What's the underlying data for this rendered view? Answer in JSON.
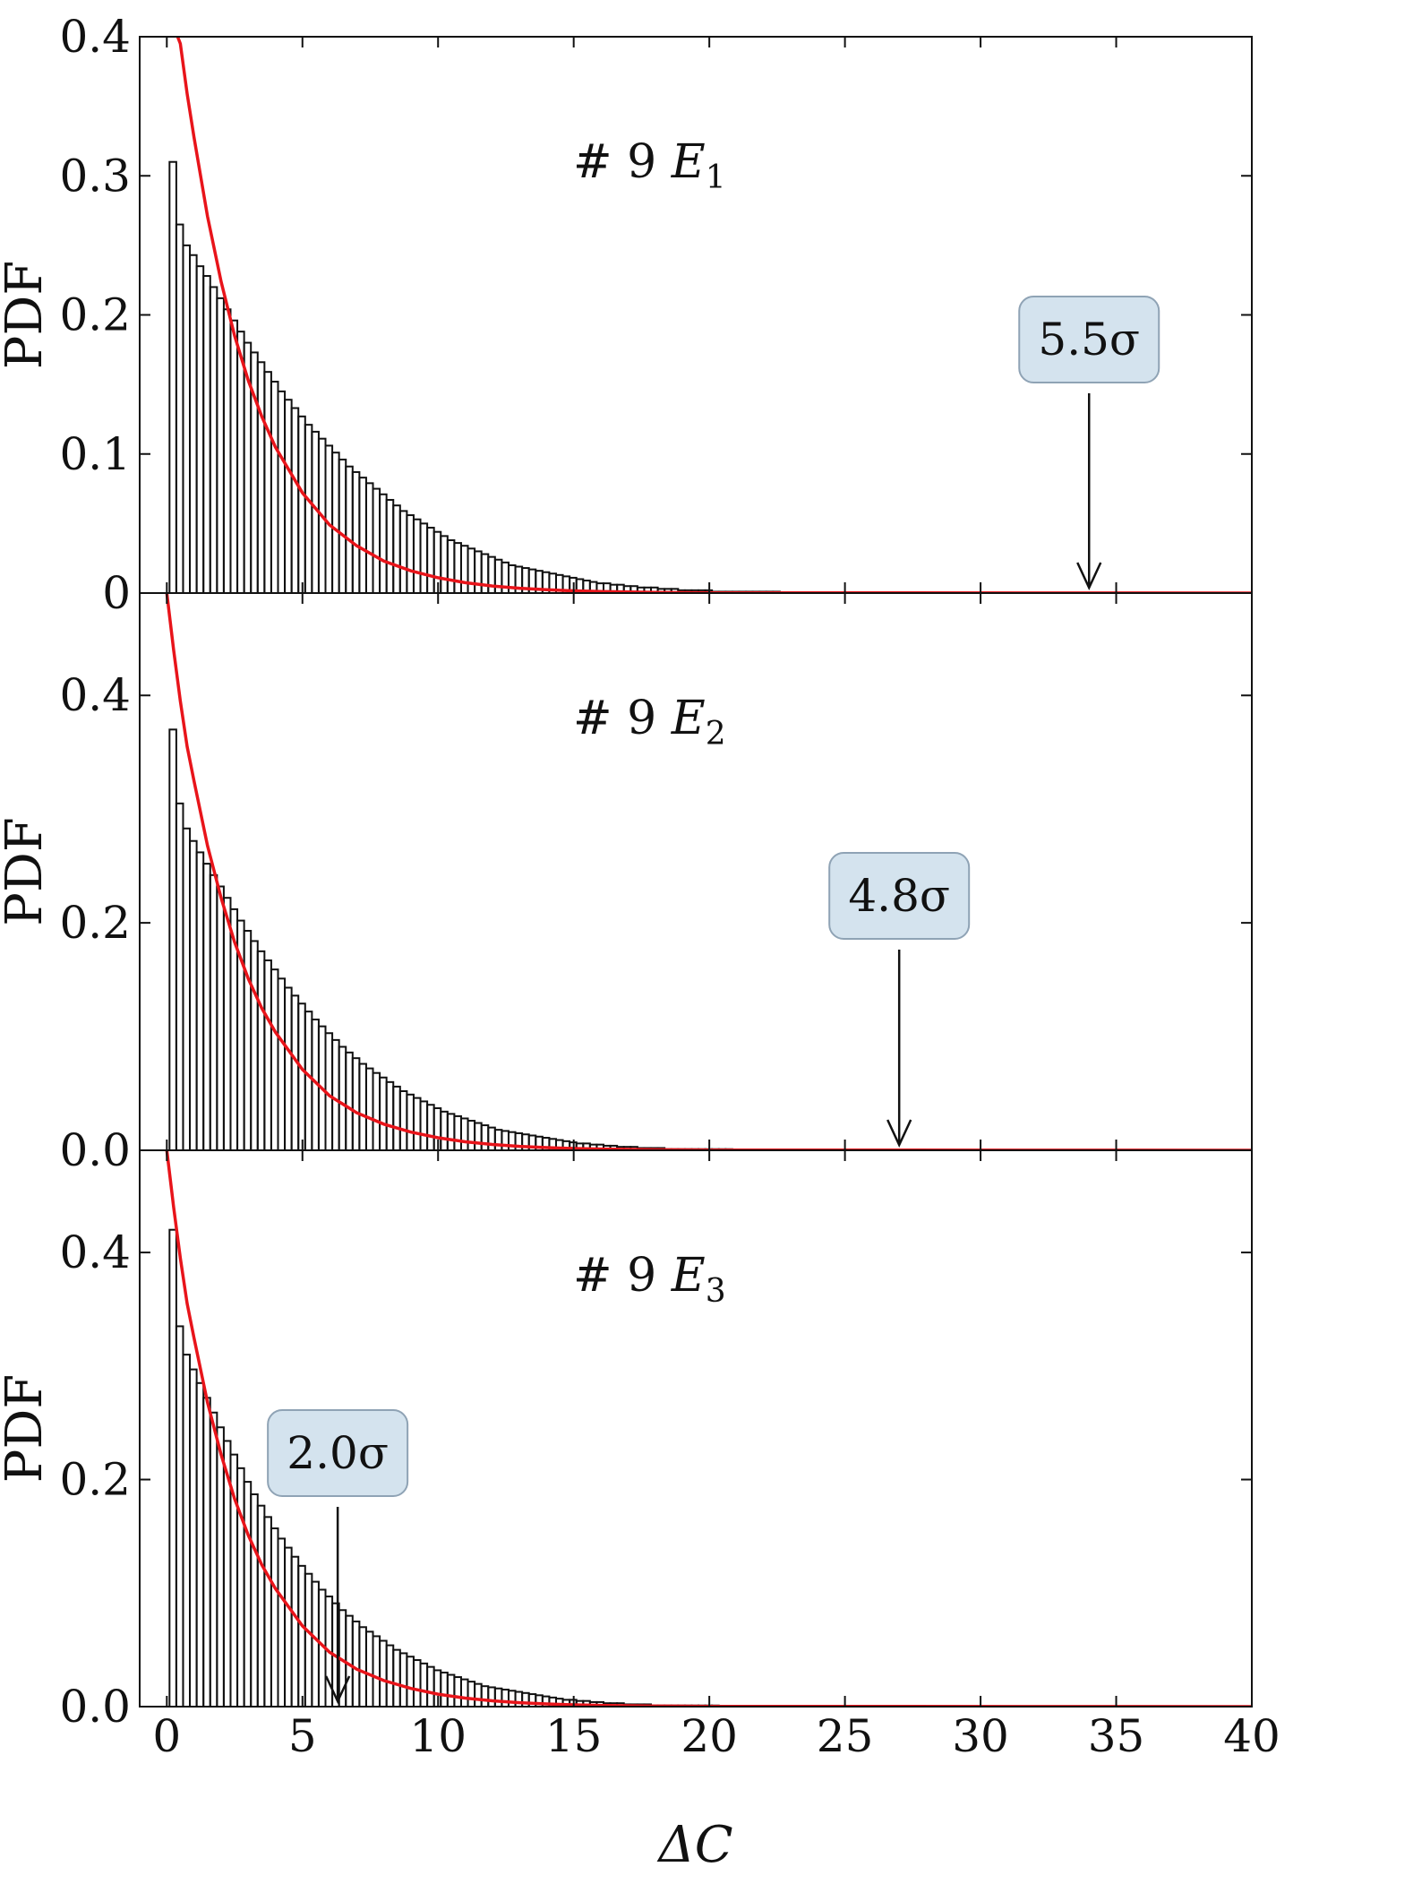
{
  "chart_data": [
    {
      "type": "bar",
      "title": "# 9 E1",
      "title_parts": {
        "prefix": "# 9 ",
        "var": "E",
        "sub": "1"
      },
      "xlabel": "ΔC",
      "ylabel": "PDF",
      "xlim": [
        -1,
        40
      ],
      "ylim": [
        0,
        0.4
      ],
      "yticks": [
        0,
        0.1,
        0.2,
        0.3,
        0.4
      ],
      "ytick_labels": [
        "0",
        "0.1",
        "0.2",
        "0.3",
        "0.4"
      ],
      "xticks": [
        0,
        5,
        10,
        15,
        20,
        25,
        30,
        35,
        40
      ],
      "xtick_labels": [
        "0",
        "5",
        "10",
        "15",
        "20",
        "25",
        "30",
        "35",
        "40"
      ],
      "grid": false,
      "histogram": {
        "bin_start": 0.1,
        "bin_width": 0.25,
        "values": [
          0.31,
          0.265,
          0.25,
          0.243,
          0.235,
          0.228,
          0.22,
          0.212,
          0.204,
          0.196,
          0.188,
          0.18,
          0.173,
          0.166,
          0.159,
          0.152,
          0.145,
          0.139,
          0.133,
          0.127,
          0.121,
          0.116,
          0.111,
          0.106,
          0.101,
          0.096,
          0.091,
          0.087,
          0.083,
          0.079,
          0.075,
          0.071,
          0.067,
          0.063,
          0.059,
          0.056,
          0.053,
          0.05,
          0.047,
          0.044,
          0.041,
          0.038,
          0.036,
          0.034,
          0.032,
          0.03,
          0.028,
          0.026,
          0.024,
          0.022,
          0.02,
          0.019,
          0.018,
          0.017,
          0.016,
          0.015,
          0.014,
          0.013,
          0.012,
          0.011,
          0.01,
          0.009,
          0.008,
          0.007,
          0.007,
          0.006,
          0.006,
          0.005,
          0.005,
          0.004,
          0.004,
          0.004,
          0.003,
          0.003,
          0.003,
          0.002,
          0.002,
          0.002,
          0.002,
          0.002,
          0.001,
          0.001,
          0.001,
          0.001,
          0.001,
          0.001,
          0.001,
          0.001,
          0.001,
          0.001
        ]
      },
      "curve": {
        "color": "#e8141a",
        "x": [
          0.4,
          0.5,
          0.75,
          1,
          1.5,
          2,
          2.5,
          3,
          3.5,
          4,
          5,
          6,
          7,
          8,
          9,
          10,
          11,
          12,
          13,
          14,
          15,
          16,
          17,
          18,
          20,
          40
        ],
        "y": [
          0.4,
          0.395,
          0.359,
          0.328,
          0.271,
          0.224,
          0.185,
          0.153,
          0.127,
          0.105,
          0.072,
          0.049,
          0.034,
          0.023,
          0.016,
          0.011,
          0.0075,
          0.0051,
          0.0035,
          0.0024,
          0.0016,
          0.0011,
          0.0008,
          0.0005,
          0.0002,
          0
        ]
      },
      "annotation": {
        "text": "5.5σ",
        "x": 34
      }
    },
    {
      "type": "bar",
      "title": "# 9 E2",
      "title_parts": {
        "prefix": "# 9 ",
        "var": "E",
        "sub": "2"
      },
      "xlabel": "ΔC",
      "ylabel": "PDF",
      "xlim": [
        -1,
        40
      ],
      "ylim": [
        0,
        0.49
      ],
      "yticks": [
        0,
        0.2,
        0.4
      ],
      "ytick_labels": [
        "0.0",
        "0.2",
        "0.4"
      ],
      "xticks": [
        0,
        5,
        10,
        15,
        20,
        25,
        30,
        35,
        40
      ],
      "xtick_labels": [
        "0",
        "5",
        "10",
        "15",
        "20",
        "25",
        "30",
        "35",
        "40"
      ],
      "grid": false,
      "histogram": {
        "bin_start": 0.1,
        "bin_width": 0.25,
        "values": [
          0.37,
          0.305,
          0.283,
          0.272,
          0.262,
          0.252,
          0.242,
          0.232,
          0.222,
          0.212,
          0.202,
          0.193,
          0.184,
          0.175,
          0.167,
          0.159,
          0.151,
          0.143,
          0.136,
          0.129,
          0.122,
          0.115,
          0.109,
          0.103,
          0.097,
          0.091,
          0.086,
          0.081,
          0.076,
          0.072,
          0.068,
          0.064,
          0.06,
          0.056,
          0.052,
          0.049,
          0.046,
          0.043,
          0.04,
          0.037,
          0.034,
          0.032,
          0.03,
          0.028,
          0.026,
          0.024,
          0.022,
          0.02,
          0.018,
          0.017,
          0.016,
          0.015,
          0.014,
          0.013,
          0.012,
          0.011,
          0.01,
          0.009,
          0.008,
          0.007,
          0.006,
          0.006,
          0.005,
          0.005,
          0.004,
          0.004,
          0.003,
          0.003,
          0.003,
          0.002,
          0.002,
          0.002,
          0.002,
          0.001,
          0.001,
          0.001,
          0.001,
          0.001,
          0.001,
          0.001,
          0.001,
          0.001,
          0.001
        ]
      },
      "curve": {
        "color": "#e8141a",
        "x": [
          0,
          0.25,
          0.5,
          0.75,
          1,
          1.5,
          2,
          2.5,
          3,
          3.5,
          4,
          5,
          6,
          7,
          8,
          9,
          10,
          11,
          12,
          13,
          14,
          15,
          16,
          18,
          20,
          40
        ],
        "y": [
          0.49,
          0.44,
          0.395,
          0.355,
          0.325,
          0.268,
          0.222,
          0.183,
          0.151,
          0.125,
          0.104,
          0.071,
          0.048,
          0.033,
          0.023,
          0.016,
          0.011,
          0.0075,
          0.0051,
          0.0035,
          0.0024,
          0.0016,
          0.0011,
          0.0005,
          0.0002,
          0
        ]
      },
      "annotation": {
        "text": "4.8σ",
        "x": 27
      }
    },
    {
      "type": "bar",
      "title": "# 9 E3",
      "title_parts": {
        "prefix": "# 9 ",
        "var": "E",
        "sub": "3"
      },
      "xlabel": "ΔC",
      "ylabel": "PDF",
      "xlim": [
        -1,
        40
      ],
      "ylim": [
        0,
        0.49
      ],
      "yticks": [
        0,
        0.2,
        0.4
      ],
      "ytick_labels": [
        "0.0",
        "0.2",
        "0.4"
      ],
      "xticks": [
        0,
        5,
        10,
        15,
        20,
        25,
        30,
        35,
        40
      ],
      "xtick_labels": [
        "0",
        "5",
        "10",
        "15",
        "20",
        "25",
        "30",
        "35",
        "40"
      ],
      "grid": false,
      "histogram": {
        "bin_start": 0.1,
        "bin_width": 0.25,
        "values": [
          0.42,
          0.335,
          0.31,
          0.297,
          0.285,
          0.272,
          0.259,
          0.246,
          0.234,
          0.222,
          0.21,
          0.198,
          0.187,
          0.177,
          0.167,
          0.157,
          0.148,
          0.14,
          0.132,
          0.124,
          0.117,
          0.11,
          0.103,
          0.097,
          0.091,
          0.085,
          0.08,
          0.075,
          0.07,
          0.066,
          0.062,
          0.058,
          0.054,
          0.05,
          0.047,
          0.044,
          0.041,
          0.038,
          0.035,
          0.032,
          0.03,
          0.028,
          0.026,
          0.024,
          0.022,
          0.02,
          0.018,
          0.017,
          0.016,
          0.015,
          0.014,
          0.013,
          0.012,
          0.011,
          0.01,
          0.009,
          0.008,
          0.007,
          0.006,
          0.006,
          0.005,
          0.005,
          0.004,
          0.004,
          0.003,
          0.003,
          0.003,
          0.002,
          0.002,
          0.002,
          0.002,
          0.001,
          0.001,
          0.001,
          0.001,
          0.001,
          0.001,
          0.001,
          0.001,
          0.001,
          0.001
        ]
      },
      "curve": {
        "color": "#e8141a",
        "x": [
          0,
          0.25,
          0.5,
          0.75,
          1,
          1.5,
          2,
          2.5,
          3,
          3.5,
          4,
          5,
          6,
          7,
          8,
          9,
          10,
          11,
          12,
          13,
          14,
          15,
          16,
          18,
          20,
          40
        ],
        "y": [
          0.49,
          0.44,
          0.395,
          0.355,
          0.325,
          0.268,
          0.222,
          0.183,
          0.151,
          0.125,
          0.104,
          0.071,
          0.048,
          0.033,
          0.023,
          0.016,
          0.011,
          0.0075,
          0.0051,
          0.0035,
          0.0024,
          0.0016,
          0.0011,
          0.0005,
          0.0002,
          0
        ]
      },
      "annotation": {
        "text": "2.0σ",
        "x": 6.3
      }
    }
  ],
  "colors": {
    "curve": "#e8141a",
    "bar_edge": "#111111",
    "annotation_box": "#d4e3ee",
    "annotation_border": "#8fa3b5"
  }
}
